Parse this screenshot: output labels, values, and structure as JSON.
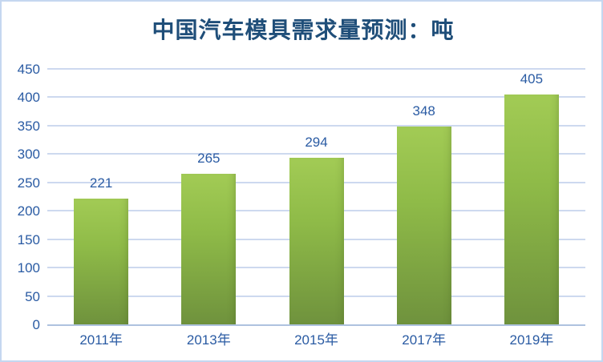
{
  "title": "中国汽车模具需求量预测：吨",
  "chart_data": {
    "type": "bar",
    "title": "中国汽车模具需求量预测：吨",
    "categories": [
      "2011年",
      "2013年",
      "2015年",
      "2017年",
      "2019年"
    ],
    "values": [
      221,
      265,
      294,
      348,
      405
    ],
    "xlabel": "",
    "ylabel": "",
    "ylim": [
      0,
      450
    ],
    "yticks": [
      0,
      50,
      100,
      150,
      200,
      250,
      300,
      350,
      400,
      450
    ],
    "grid": true,
    "legend_position": "none",
    "data_labels": true
  },
  "colors": {
    "bar_gradient_top": "#a2cb55",
    "bar_gradient_bottom": "#6f923d",
    "label_text": "#2a5ba3",
    "title_text": "#1f4e79",
    "gridline": "#cdd9ef",
    "axis_line": "#aec2df",
    "frame_border": "#c5d7f0",
    "background": "#ffffff"
  }
}
